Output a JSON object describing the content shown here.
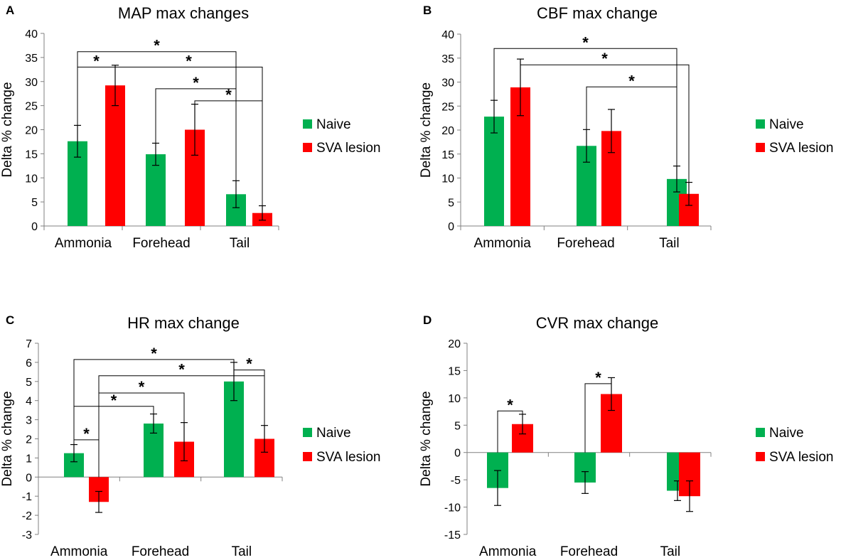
{
  "colors": {
    "naive": "#00b050",
    "sva": "#ff0000",
    "axis": "#808080",
    "text": "#000000"
  },
  "legend_labels": [
    "Naive",
    "SVA lesion"
  ],
  "chart_data": [
    {
      "panel_label": "A",
      "type": "bar",
      "title": "MAP max changes",
      "ylabel": "Delta % change",
      "xlabel": "",
      "categories": [
        "Ammonia",
        "Forehead",
        "Tail"
      ],
      "ylim": [
        0,
        40
      ],
      "ytick_step": 5,
      "ytick_labels": [
        "0",
        "5",
        "10",
        "15",
        "20",
        "25",
        "30",
        "35",
        "40"
      ],
      "grid": false,
      "legend_position": "right",
      "series": [
        {
          "name": "Naive",
          "values": [
            17.6,
            14.9,
            6.6
          ],
          "errors": [
            3.3,
            2.3,
            2.8
          ]
        },
        {
          "name": "SVA lesion",
          "values": [
            29.2,
            20.0,
            2.7
          ],
          "errors": [
            4.2,
            5.3,
            1.5
          ]
        }
      ],
      "significance": [
        {
          "from": [
            0,
            0
          ],
          "to": [
            2,
            0
          ],
          "level": 36.2,
          "label": "*"
        },
        {
          "from": [
            0,
            0
          ],
          "to": [
            0,
            1
          ],
          "level": 33.0,
          "label": "*"
        },
        {
          "from": [
            0,
            1
          ],
          "to": [
            2,
            1
          ],
          "level": 33.0,
          "label": "*"
        },
        {
          "from": [
            1,
            0
          ],
          "to": [
            2,
            0
          ],
          "level": 28.5,
          "label": "*"
        },
        {
          "from": [
            1,
            1
          ],
          "to": [
            2,
            1
          ],
          "level": 26.0,
          "label": "*"
        }
      ]
    },
    {
      "panel_label": "B",
      "type": "bar",
      "title": "CBF max change",
      "ylabel": "Delta % change",
      "xlabel": "",
      "categories": [
        "Ammonia",
        "Forehead",
        "Tail"
      ],
      "ylim": [
        0,
        40
      ],
      "ytick_step": 5,
      "ytick_labels": [
        "0",
        "5",
        "10",
        "15",
        "20",
        "25",
        "30",
        "35",
        "40"
      ],
      "grid": false,
      "legend_position": "right",
      "series": [
        {
          "name": "Naive",
          "values": [
            22.8,
            16.7,
            9.8
          ],
          "errors": [
            3.4,
            3.4,
            2.7
          ]
        },
        {
          "name": "SVA lesion",
          "values": [
            28.9,
            19.8,
            6.7
          ],
          "errors": [
            5.9,
            4.5,
            2.4
          ]
        }
      ],
      "significance": [
        {
          "from": [
            0,
            0
          ],
          "to": [
            2,
            0
          ],
          "level": 37.0,
          "label": "*"
        },
        {
          "from": [
            0,
            1
          ],
          "to": [
            2,
            1
          ],
          "level": 33.6,
          "label": "*"
        },
        {
          "from": [
            1,
            0
          ],
          "to": [
            2,
            0
          ],
          "level": 29.0,
          "label": "*"
        }
      ]
    },
    {
      "panel_label": "C",
      "type": "bar",
      "title": "HR max change",
      "ylabel": "Delta % change",
      "xlabel": "",
      "categories": [
        "Ammonia",
        "Forehead",
        "Tail"
      ],
      "ylim": [
        -3,
        7
      ],
      "ytick_step": 1,
      "ytick_labels": [
        "-3",
        "-2",
        "-1",
        "0",
        "1",
        "2",
        "3",
        "4",
        "5",
        "6",
        "7"
      ],
      "grid": false,
      "legend_position": "right",
      "series": [
        {
          "name": "Naive",
          "values": [
            1.25,
            2.8,
            5.0
          ],
          "errors": [
            0.45,
            0.5,
            1.0
          ]
        },
        {
          "name": "SVA lesion",
          "values": [
            -1.3,
            1.85,
            2.0
          ],
          "errors": [
            0.55,
            1.0,
            0.7
          ]
        }
      ],
      "significance": [
        {
          "from": [
            0,
            0
          ],
          "to": [
            2,
            0
          ],
          "level": 6.15,
          "label": "*"
        },
        {
          "from": [
            0,
            1
          ],
          "to": [
            2,
            1
          ],
          "level": 5.3,
          "label": "*"
        },
        {
          "from": [
            2,
            0
          ],
          "to": [
            2,
            1
          ],
          "level": 5.6,
          "label": "*"
        },
        {
          "from": [
            0,
            1
          ],
          "to": [
            1,
            1
          ],
          "level": 4.4,
          "label": "*"
        },
        {
          "from": [
            0,
            0
          ],
          "to": [
            1,
            0
          ],
          "level": 3.7,
          "label": "*"
        },
        {
          "from": [
            0,
            0
          ],
          "to": [
            0,
            1
          ],
          "level": 1.95,
          "label": "*"
        }
      ]
    },
    {
      "panel_label": "D",
      "type": "bar",
      "title": "CVR max change",
      "ylabel": "Delta % change",
      "xlabel": "",
      "categories": [
        "Ammonia",
        "Forehead",
        "Tail"
      ],
      "ylim": [
        -15,
        20
      ],
      "ytick_step": 5,
      "ytick_labels": [
        "-15",
        "-10",
        "-5",
        "0",
        "5",
        "10",
        "15",
        "20"
      ],
      "grid": false,
      "legend_position": "right",
      "series": [
        {
          "name": "Naive",
          "values": [
            -6.5,
            -5.5,
            -7.0
          ],
          "errors": [
            3.2,
            2.0,
            1.8
          ]
        },
        {
          "name": "SVA lesion",
          "values": [
            5.2,
            10.7,
            -8.0
          ],
          "errors": [
            1.8,
            3.0,
            2.8
          ]
        }
      ],
      "significance": [
        {
          "from": [
            0,
            0
          ],
          "to": [
            0,
            1
          ],
          "level": 7.6,
          "label": "*"
        },
        {
          "from": [
            1,
            0
          ],
          "to": [
            1,
            1
          ],
          "level": 12.6,
          "label": "*"
        }
      ]
    }
  ]
}
